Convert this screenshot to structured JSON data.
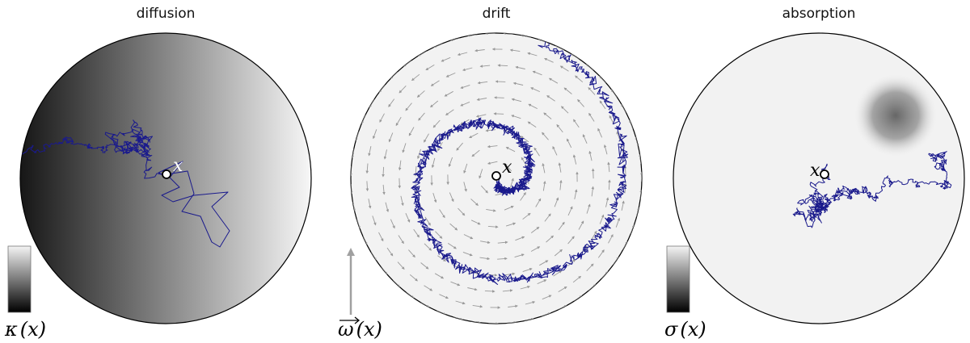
{
  "panels": [
    {
      "title": "diffusion",
      "point_label": "x",
      "legend_symbol": "κ",
      "legend_arg": "(x)"
    },
    {
      "title": "drift",
      "point_label": "x",
      "legend_symbol": "ω",
      "legend_arg": "(x)"
    },
    {
      "title": "absorption",
      "point_label": "x",
      "legend_symbol": "σ",
      "legend_arg": "(x)"
    }
  ],
  "colors": {
    "path": "#1a1a8c",
    "disk_outline": "#000000",
    "disk_fill": "#f2f2f2",
    "arrow": "#999999",
    "absorber": "#555555"
  }
}
